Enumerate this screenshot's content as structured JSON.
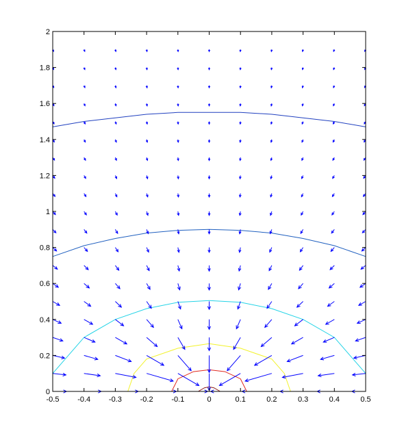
{
  "chart_data": {
    "type": "contour+quiver",
    "title": "",
    "xlabel": "",
    "ylabel": "",
    "xlim": [
      -0.5,
      0.5
    ],
    "ylim": [
      0,
      2
    ],
    "xticks": [
      "-0.5",
      "-0.4",
      "-0.3",
      "-0.2",
      "-0.1",
      "0",
      "0.1",
      "0.2",
      "0.3",
      "0.4",
      "0.5"
    ],
    "yticks": [
      "0",
      "0.2",
      "0.4",
      "0.6",
      "0.8",
      "1",
      "1.2",
      "1.4",
      "1.6",
      "1.8",
      "2"
    ],
    "grid": false,
    "contours": [
      {
        "color": "#1f3fbf",
        "points": [
          [
            -0.5,
            1.47
          ],
          [
            -0.4,
            1.5
          ],
          [
            -0.3,
            1.52
          ],
          [
            -0.2,
            1.54
          ],
          [
            -0.1,
            1.55
          ],
          [
            0,
            1.55
          ],
          [
            0.1,
            1.55
          ],
          [
            0.2,
            1.54
          ],
          [
            0.3,
            1.52
          ],
          [
            0.4,
            1.5
          ],
          [
            0.5,
            1.47
          ]
        ]
      },
      {
        "color": "#1f5fbf",
        "points": [
          [
            -0.5,
            0.75
          ],
          [
            -0.4,
            0.81
          ],
          [
            -0.3,
            0.85
          ],
          [
            -0.2,
            0.88
          ],
          [
            -0.1,
            0.895
          ],
          [
            0,
            0.9
          ],
          [
            0.1,
            0.895
          ],
          [
            0.2,
            0.88
          ],
          [
            0.3,
            0.85
          ],
          [
            0.4,
            0.81
          ],
          [
            0.5,
            0.75
          ]
        ]
      },
      {
        "color": "#22d3e6",
        "points": [
          [
            -0.5,
            0.1
          ],
          [
            -0.45,
            0.2
          ],
          [
            -0.4,
            0.3
          ],
          [
            -0.3,
            0.4
          ],
          [
            -0.2,
            0.46
          ],
          [
            -0.1,
            0.495
          ],
          [
            0,
            0.505
          ],
          [
            0.1,
            0.495
          ],
          [
            0.2,
            0.46
          ],
          [
            0.3,
            0.4
          ],
          [
            0.4,
            0.3
          ],
          [
            0.45,
            0.2
          ],
          [
            0.5,
            0.1
          ]
        ]
      },
      {
        "color": "#f2f22a",
        "points": [
          [
            -0.26,
            0
          ],
          [
            -0.24,
            0.1
          ],
          [
            -0.2,
            0.18
          ],
          [
            -0.1,
            0.24
          ],
          [
            0,
            0.265
          ],
          [
            0.1,
            0.24
          ],
          [
            0.2,
            0.18
          ],
          [
            0.24,
            0.1
          ],
          [
            0.26,
            0
          ]
        ]
      },
      {
        "color": "#e0281e",
        "points": [
          [
            -0.12,
            0
          ],
          [
            -0.1,
            0.07
          ],
          [
            -0.05,
            0.11
          ],
          [
            0,
            0.12
          ],
          [
            0.05,
            0.11
          ],
          [
            0.1,
            0.07
          ],
          [
            0.12,
            0
          ]
        ]
      },
      {
        "color": "#8b1a1a",
        "points": [
          [
            -0.035,
            0
          ],
          [
            -0.015,
            0.02
          ],
          [
            0,
            0.025
          ],
          [
            0.015,
            0.02
          ],
          [
            0.035,
            0
          ]
        ]
      }
    ],
    "quiver": {
      "color": "#0000ff",
      "x": [
        -0.5,
        -0.4,
        -0.3,
        -0.2,
        -0.1,
        0,
        0.1,
        0.2,
        0.3,
        0.4,
        0.5
      ],
      "y": [
        0,
        0.1,
        0.2,
        0.3,
        0.4,
        0.5,
        0.6,
        0.7,
        0.8,
        0.9,
        1.0,
        1.1,
        1.2,
        1.3,
        1.4,
        1.5,
        1.6,
        1.7,
        1.8,
        1.9
      ],
      "field": "points toward origin, magnitude increasing near (0,0)"
    }
  }
}
